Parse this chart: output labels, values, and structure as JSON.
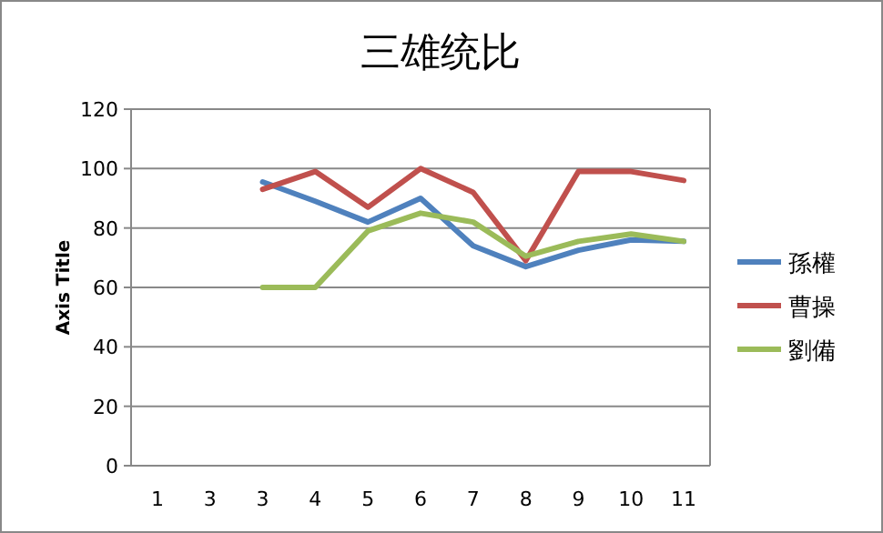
{
  "chart_data": {
    "type": "line",
    "title": "三雄统比",
    "ylabel": "Axis Title",
    "categories": [
      "1",
      "3",
      "3",
      "4",
      "5",
      "6",
      "7",
      "8",
      "9",
      "10",
      "11"
    ],
    "series": [
      {
        "name": "孫權",
        "color": "#4f81bd",
        "values": [
          null,
          null,
          95.5,
          89,
          82,
          90,
          74,
          67,
          72.5,
          76,
          75.5
        ]
      },
      {
        "name": "曹操",
        "color": "#c0504d",
        "values": [
          null,
          null,
          93,
          99,
          87,
          100,
          92,
          69,
          99,
          99,
          96
        ]
      },
      {
        "name": "劉備",
        "color": "#9bbb59",
        "values": [
          null,
          null,
          60,
          60,
          79,
          85,
          82,
          70.5,
          75.5,
          78,
          75.5
        ]
      }
    ],
    "ylim": [
      0,
      120
    ],
    "yticks": [
      0,
      20,
      40,
      60,
      80,
      100,
      120
    ],
    "grid": "y",
    "legend": "right"
  }
}
